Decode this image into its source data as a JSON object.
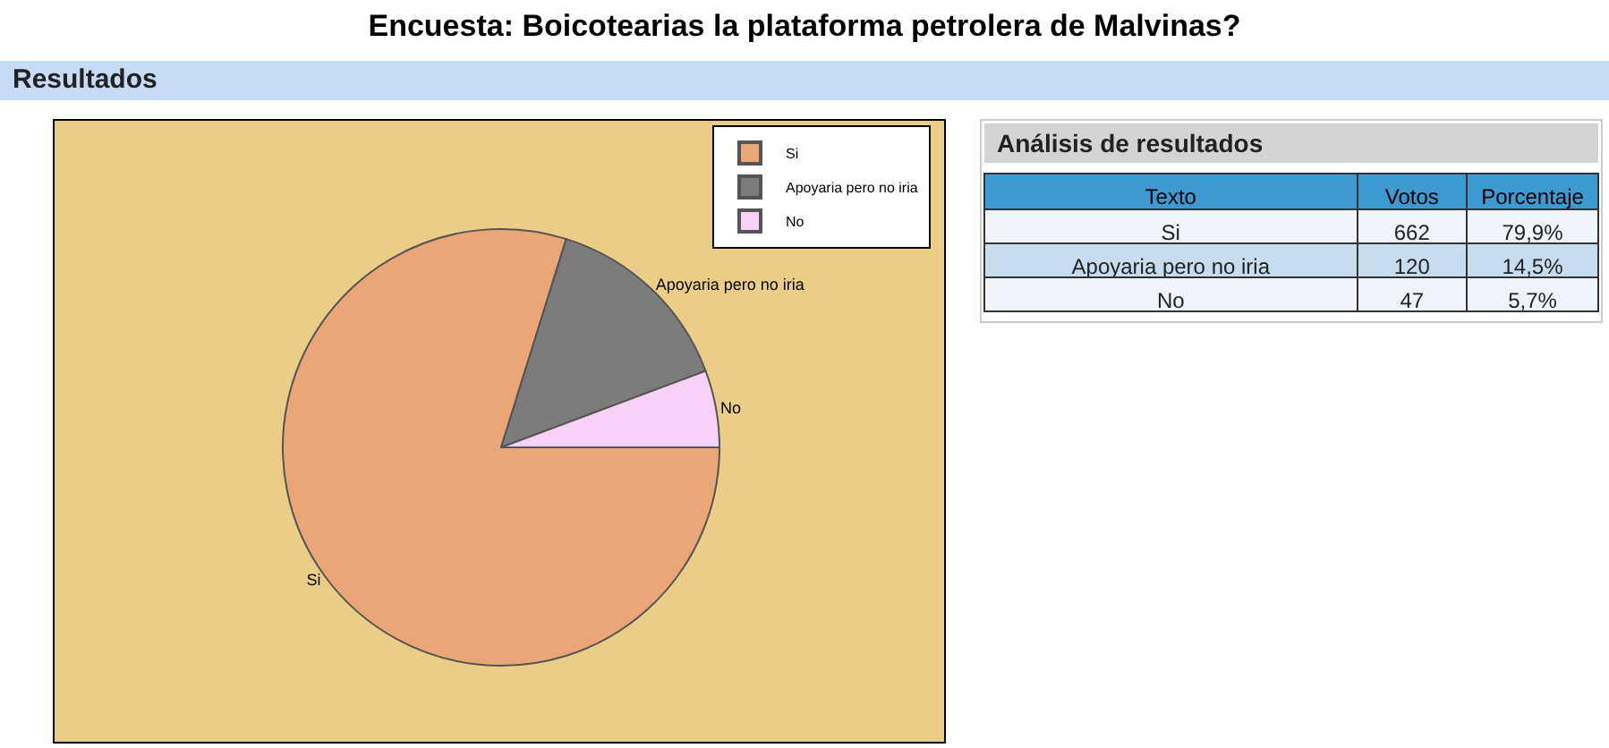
{
  "chart_data": {
    "type": "pie",
    "title": "Encuesta: Boicotearias la plataforma petrolera de Malvinas?",
    "subtitle": "Resultados",
    "categories": [
      "Si",
      "Apoyaria pero no iria",
      "No"
    ],
    "values": [
      79.9,
      14.5,
      5.7
    ],
    "colors": [
      "#eba677",
      "#7c7c7c",
      "#f8d2f6"
    ],
    "legend": "top right",
    "annotations": [
      "Análisis de resultados",
      "Texto",
      "Votos",
      "Porcentaje",
      "662",
      "120",
      "47",
      "79,9%",
      "14,5%",
      "5,7%"
    ]
  }
}
